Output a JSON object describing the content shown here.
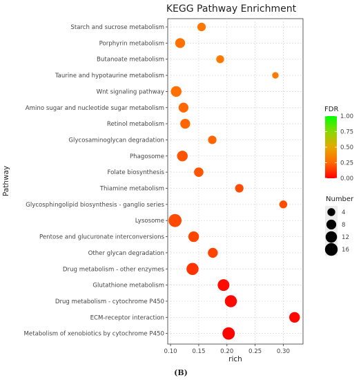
{
  "chart_data": {
    "type": "scatter",
    "title": "KEGG Pathway Enrichment",
    "xlabel": "rich",
    "ylabel": "Pathway",
    "xlim": [
      0.095,
      0.335
    ],
    "xticks": [
      "0.10",
      "0.15",
      "0.20",
      "0.25",
      "0.30"
    ],
    "grid": true,
    "points": [
      {
        "pathway": "Starch and sucrose metabolism",
        "rich": 0.155,
        "fdr": 0.42,
        "number": 5
      },
      {
        "pathway": "Porphyrin metabolism",
        "rich": 0.117,
        "fdr": 0.4,
        "number": 8
      },
      {
        "pathway": "Butanoate metabolism",
        "rich": 0.188,
        "fdr": 0.43,
        "number": 4
      },
      {
        "pathway": "Taurine and hypotaurine metabolism",
        "rich": 0.286,
        "fdr": 0.43,
        "number": 2
      },
      {
        "pathway": "Wnt signaling pathway",
        "rich": 0.11,
        "fdr": 0.4,
        "number": 10
      },
      {
        "pathway": "Amino sugar and nucleotide sugar metabolism",
        "rich": 0.123,
        "fdr": 0.37,
        "number": 8
      },
      {
        "pathway": "Retinol metabolism",
        "rich": 0.126,
        "fdr": 0.36,
        "number": 8
      },
      {
        "pathway": "Glycosaminoglycan degradation",
        "rich": 0.174,
        "fdr": 0.36,
        "number": 5
      },
      {
        "pathway": "Phagosome",
        "rich": 0.121,
        "fdr": 0.3,
        "number": 10
      },
      {
        "pathway": "Folate biosynthesis",
        "rich": 0.15,
        "fdr": 0.3,
        "number": 7
      },
      {
        "pathway": "Thiamine metabolism",
        "rich": 0.222,
        "fdr": 0.27,
        "number": 5
      },
      {
        "pathway": "Glycosphingolipid biosynthesis - ganglio series",
        "rich": 0.3,
        "fdr": 0.27,
        "number": 4
      },
      {
        "pathway": "Lysosome",
        "rich": 0.108,
        "fdr": 0.26,
        "number": 17
      },
      {
        "pathway": "Pentose and glucuronate interconversions",
        "rich": 0.141,
        "fdr": 0.25,
        "number": 10
      },
      {
        "pathway": "Other glycan degradation",
        "rich": 0.175,
        "fdr": 0.24,
        "number": 8
      },
      {
        "pathway": "Drug metabolism - other enzymes",
        "rich": 0.139,
        "fdr": 0.18,
        "number": 14
      },
      {
        "pathway": "Glutathione metabolism",
        "rich": 0.194,
        "fdr": 0.04,
        "number": 13
      },
      {
        "pathway": "Drug metabolism - cytochrome P450",
        "rich": 0.207,
        "fdr": 0.03,
        "number": 14
      },
      {
        "pathway": "ECM-receptor interaction",
        "rich": 0.32,
        "fdr": 0.02,
        "number": 10
      },
      {
        "pathway": "Metabolism of xenobiotics by cytochrome P450",
        "rich": 0.203,
        "fdr": 0.01,
        "number": 15
      }
    ],
    "color_legend": {
      "title": "FDR",
      "range": [
        0,
        1
      ],
      "ticks": [
        "1.00",
        "0.75",
        "0.50",
        "0.25",
        "0.00"
      ],
      "low_color": "#ff0000",
      "mid_color": "#ff8c00",
      "high_color": "#00ff00"
    },
    "size_legend": {
      "title": "Number",
      "values": [
        4,
        8,
        12,
        16
      ],
      "labels": [
        "4",
        "8",
        "12",
        "16"
      ]
    },
    "legend_placement": "right"
  },
  "figure_label": "(B)"
}
